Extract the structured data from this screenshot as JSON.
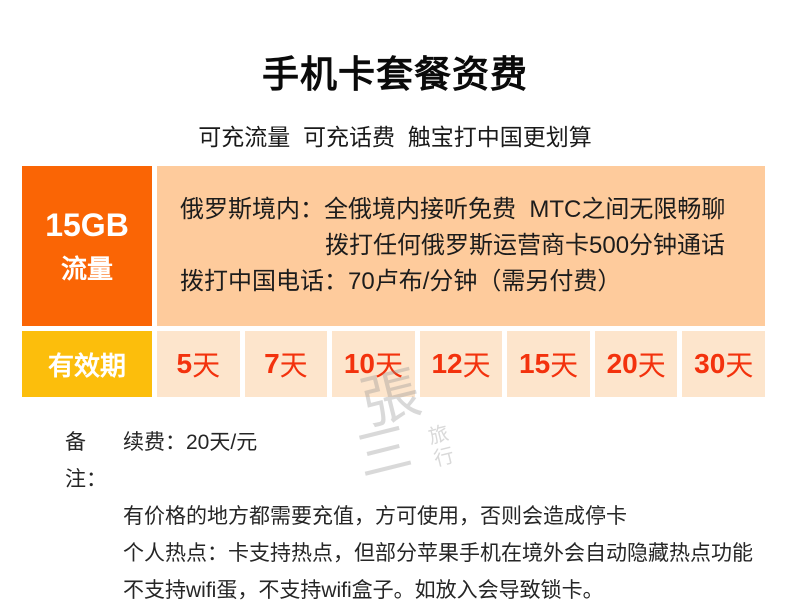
{
  "header": {
    "title": "手机卡套餐资费",
    "subtitle": "可充流量  可充话费  触宝打中国更划算"
  },
  "plan": {
    "data_amount": "15GB",
    "data_label": "流量",
    "description_line1": "俄罗斯境内：全俄境内接听免费  MTC之间无限畅聊",
    "description_line2": "拨打任何俄罗斯运营商卡500分钟通话",
    "description_line3": "拨打中国电话：70卢布/分钟（需另付费）"
  },
  "validity": {
    "label": "有效期",
    "options": [
      {
        "num": "5",
        "unit": "天"
      },
      {
        "num": "7",
        "unit": "天"
      },
      {
        "num": "10",
        "unit": "天"
      },
      {
        "num": "12",
        "unit": "天"
      },
      {
        "num": "15",
        "unit": "天"
      },
      {
        "num": "20",
        "unit": "天"
      },
      {
        "num": "30",
        "unit": "天"
      }
    ]
  },
  "notes": {
    "label": "备注：",
    "line1": "续费：20天/元",
    "line2": "有价格的地方都需要充值，方可使用，否则会造成停卡",
    "line3": "个人热点：卡支持热点，但部分苹果手机在境外会自动隐藏热点功能",
    "line4": "不支持wifi蛋，不支持wifi盒子。如放入会导致锁卡。"
  },
  "watermark": {
    "char_top": "張",
    "char_bottom": "三",
    "small_char_top": "旅",
    "small_char_bottom": "行"
  },
  "colors": {
    "plan_cell_orange": "#FA6505",
    "validity_cell_gold": "#FCBE0C",
    "description_cell_peach": "#FECB9C",
    "day_cell_light_peach": "#FDE5CC",
    "day_text_red": "#F3320D"
  }
}
